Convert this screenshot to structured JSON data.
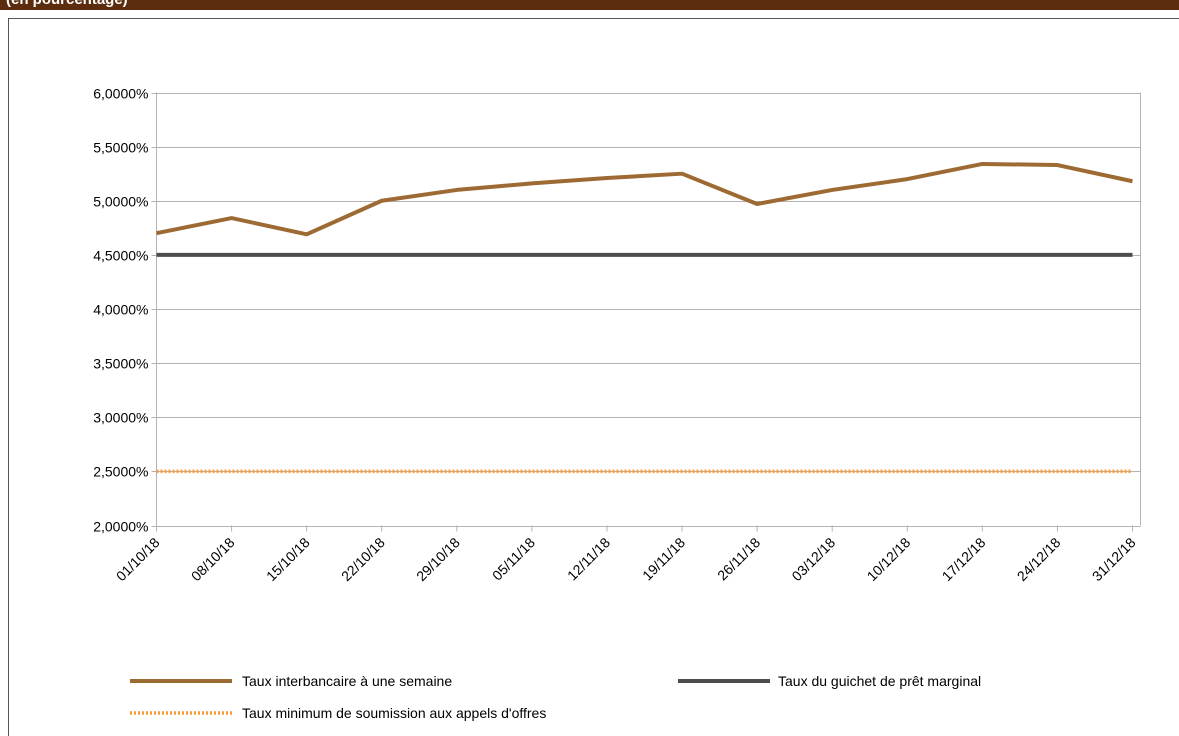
{
  "header": {
    "text": "(en pourcentage)"
  },
  "chart_data": {
    "type": "line",
    "categories": [
      "01/10/18",
      "08/10/18",
      "15/10/18",
      "22/10/18",
      "29/10/18",
      "05/11/18",
      "12/11/18",
      "19/11/18",
      "26/11/18",
      "03/12/18",
      "10/12/18",
      "17/12/18",
      "24/12/18",
      "31/12/18"
    ],
    "series": [
      {
        "name": "Taux interbancaire à une semaine",
        "color": "#9e6a34",
        "style": "solid",
        "values": [
          4.7,
          4.84,
          4.69,
          5.0,
          5.1,
          5.16,
          5.21,
          5.25,
          4.97,
          5.1,
          5.2,
          5.34,
          5.33,
          5.18
        ]
      },
      {
        "name": "Taux du guichet de prêt marginal",
        "color": "#4d4d4d",
        "style": "solid",
        "values": [
          4.5,
          4.5,
          4.5,
          4.5,
          4.5,
          4.5,
          4.5,
          4.5,
          4.5,
          4.5,
          4.5,
          4.5,
          4.5,
          4.5
        ]
      },
      {
        "name": "Taux minimum de soumission aux appels d'offres",
        "color": "#ff9933",
        "style": "dotted",
        "values": [
          2.5,
          2.5,
          2.5,
          2.5,
          2.5,
          2.5,
          2.5,
          2.5,
          2.5,
          2.5,
          2.5,
          2.5,
          2.5,
          2.5
        ]
      }
    ],
    "ylim": [
      2,
      6
    ],
    "yticks": [
      {
        "value": 2,
        "label": "2,0000%"
      },
      {
        "value": 2.5,
        "label": "2,5000%"
      },
      {
        "value": 3,
        "label": "3,0000%"
      },
      {
        "value": 3.5,
        "label": "3,5000%"
      },
      {
        "value": 4,
        "label": "4,0000%"
      },
      {
        "value": 4.5,
        "label": "4,5000%"
      },
      {
        "value": 5,
        "label": "5,0000%"
      },
      {
        "value": 5.5,
        "label": "5,5000%"
      },
      {
        "value": 6,
        "label": "6,0000%"
      }
    ],
    "grid": true
  }
}
